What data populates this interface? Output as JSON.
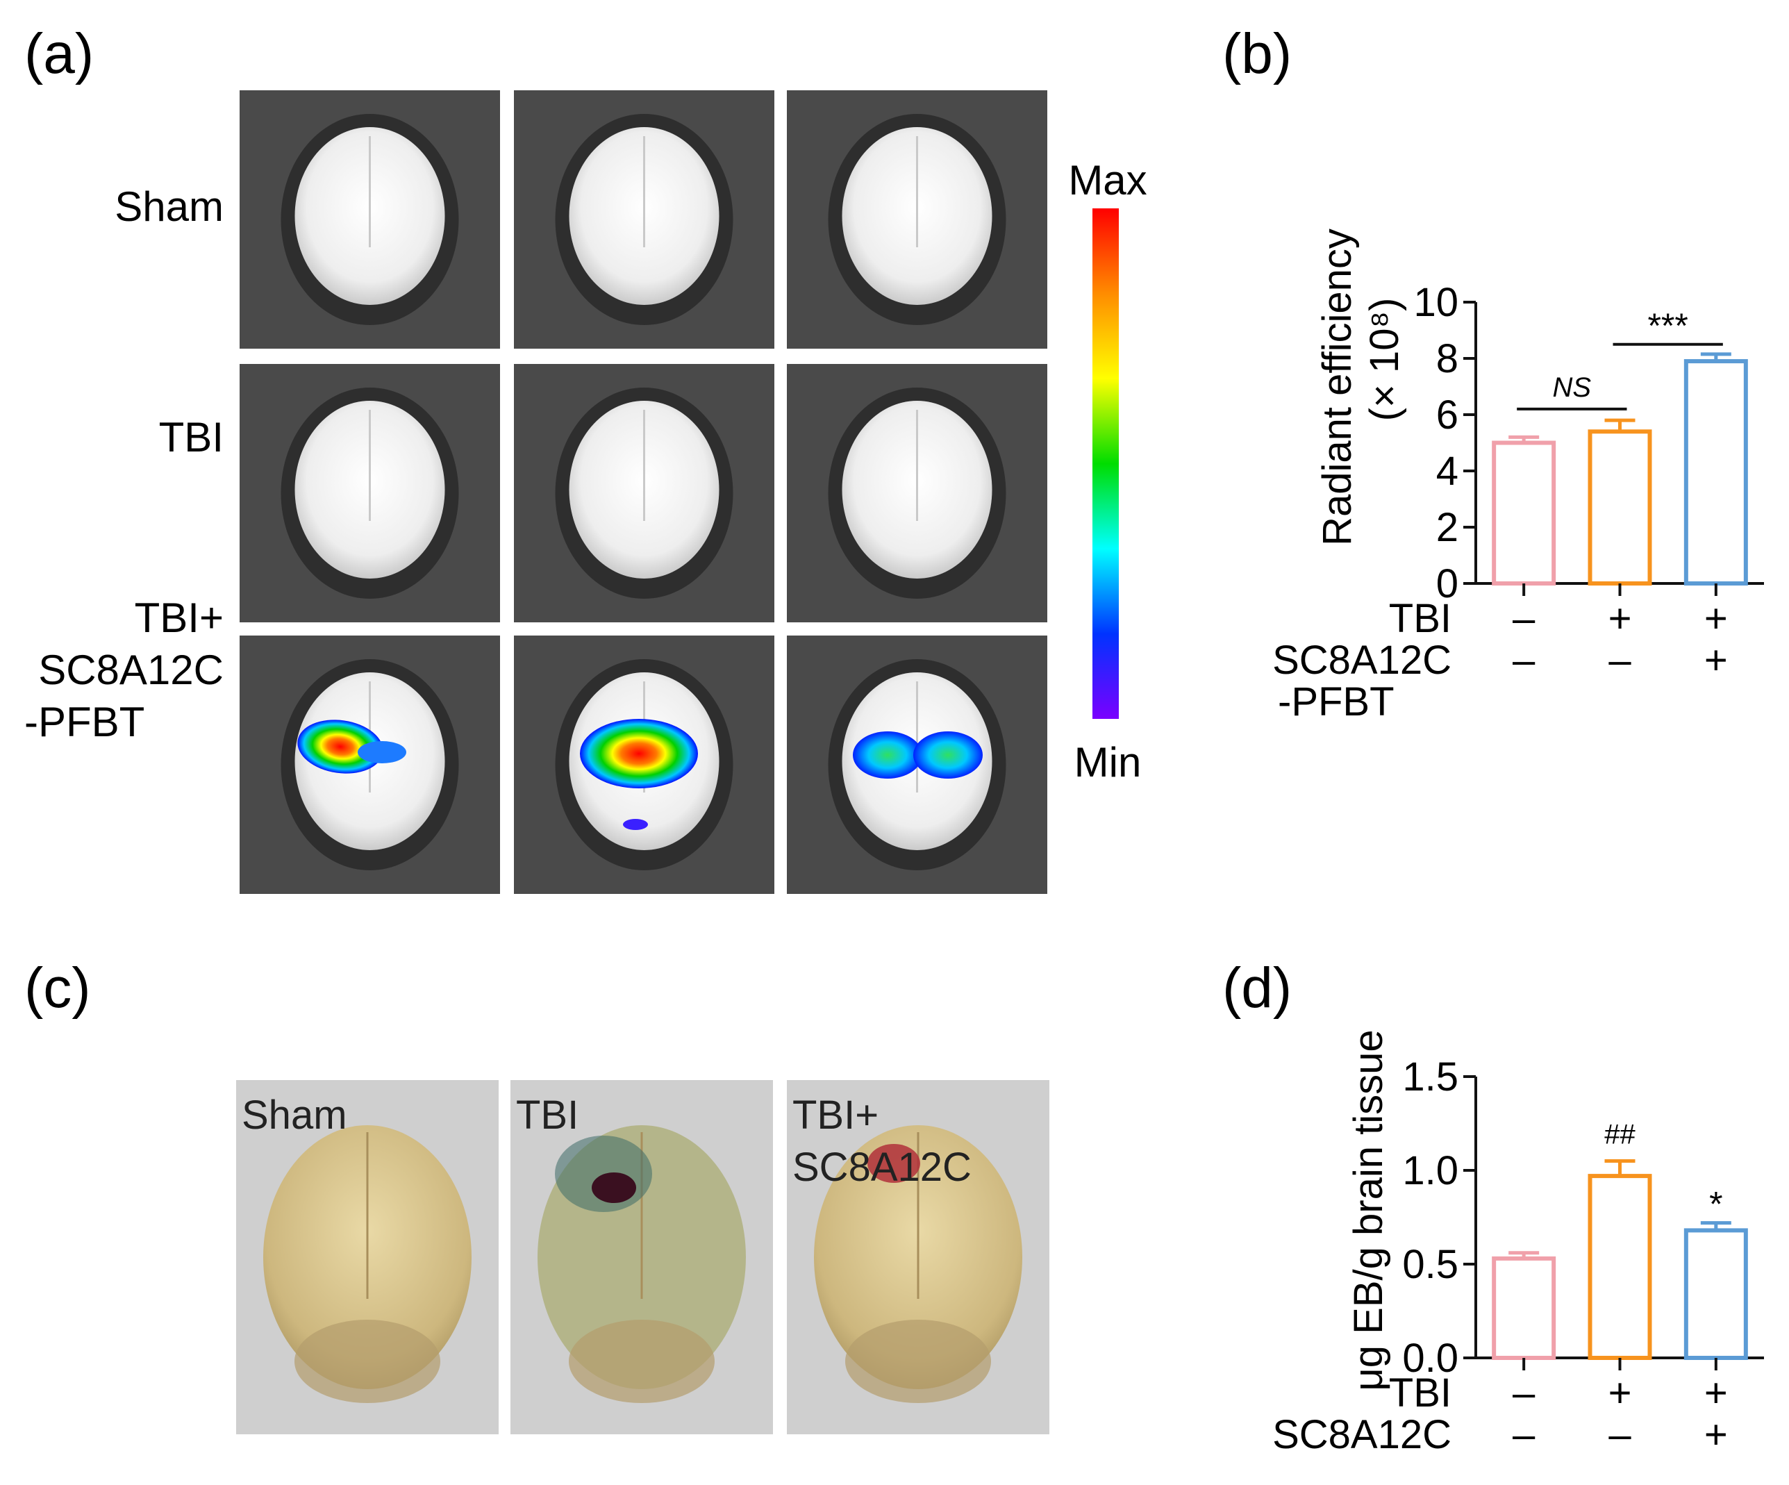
{
  "panels": {
    "a": {
      "label": "(a)",
      "row_labels": [
        [
          "Sham"
        ],
        [
          "TBI"
        ],
        [
          "TBI+",
          "SC8A12C",
          "-PFBT"
        ]
      ],
      "colorbar": {
        "max_label": "Max",
        "min_label": "Min",
        "colors": [
          "#ff0000",
          "#ff8c00",
          "#ffff00",
          "#00dd00",
          "#00ffff",
          "#0033ff",
          "#7a00ff"
        ]
      }
    },
    "b": {
      "label": "(b)",
      "sig_ns": "NS",
      "sig_star": "***"
    },
    "c": {
      "label": "(c)",
      "photo_labels": [
        "Sham",
        "TBI",
        "TBI+\nSC8A12C"
      ]
    },
    "d": {
      "label": "(d)",
      "sig_hash": "##",
      "sig_star": "*"
    }
  },
  "chart_data": [
    {
      "type": "bar",
      "panel": "b",
      "ylabel": "Radiant efficiency",
      "ylabel_line2": "(× 10⁸)",
      "ylim": [
        0,
        10
      ],
      "yticks": [
        0,
        2,
        4,
        6,
        8,
        10
      ],
      "condition_labels": [
        "TBI",
        "SC8A12C",
        "-PFBT"
      ],
      "conditions": [
        [
          "–",
          "+",
          "+"
        ],
        [
          "–",
          "–",
          "+"
        ]
      ],
      "values": [
        5.0,
        5.4,
        7.9
      ],
      "errors": [
        0.2,
        0.4,
        0.25
      ],
      "colors": [
        "#f0a0aa",
        "#f7931e",
        "#5b9bd5"
      ]
    },
    {
      "type": "bar",
      "panel": "d",
      "ylabel": "μg EB/g brain tissue",
      "ylim": [
        0,
        1.5
      ],
      "yticks": [
        "0.0",
        "0.5",
        "1.0",
        "1.5"
      ],
      "condition_labels": [
        "TBI",
        "SC8A12C"
      ],
      "conditions": [
        [
          "–",
          "+",
          "+"
        ],
        [
          "–",
          "–",
          "+"
        ]
      ],
      "values": [
        0.53,
        0.97,
        0.68
      ],
      "errors": [
        0.03,
        0.08,
        0.04
      ],
      "colors": [
        "#f0a0aa",
        "#f7931e",
        "#5b9bd5"
      ]
    }
  ]
}
